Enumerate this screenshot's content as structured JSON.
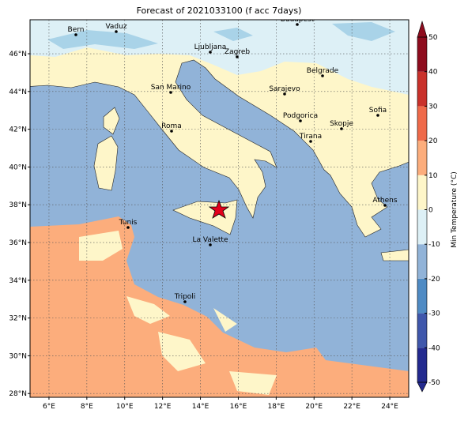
{
  "chart_data": {
    "type": "map",
    "title": "Forecast of 2021033100 (f acc 7days)",
    "xlim": [
      5,
      25
    ],
    "ylim": [
      27.8,
      47.8
    ],
    "xticks": [
      {
        "value": 6,
        "label": "6°E"
      },
      {
        "value": 8,
        "label": "8°E"
      },
      {
        "value": 10,
        "label": "10°E"
      },
      {
        "value": 12,
        "label": "12°E"
      },
      {
        "value": 14,
        "label": "14°E"
      },
      {
        "value": 16,
        "label": "16°E"
      },
      {
        "value": 18,
        "label": "18°E"
      },
      {
        "value": 20,
        "label": "20°E"
      },
      {
        "value": 22,
        "label": "22°E"
      },
      {
        "value": 24,
        "label": "24°E"
      }
    ],
    "yticks": [
      {
        "value": 28,
        "label": "28°N"
      },
      {
        "value": 30,
        "label": "30°N"
      },
      {
        "value": 32,
        "label": "32°N"
      },
      {
        "value": 34,
        "label": "34°N"
      },
      {
        "value": 36,
        "label": "36°N"
      },
      {
        "value": 38,
        "label": "38°N"
      },
      {
        "value": 40,
        "label": "40°N"
      },
      {
        "value": 42,
        "label": "42°N"
      },
      {
        "value": 44,
        "label": "44°N"
      },
      {
        "value": 46,
        "label": "46°N"
      }
    ],
    "grid": true,
    "cities": [
      "Bern",
      "Vaduz",
      "Budapest",
      "Ljubljana",
      "Zagreb",
      "Belgrade",
      "San Marino",
      "Sarajevo",
      "Sofia",
      "Roma",
      "Podgorica",
      "Skopje",
      "Tirana",
      "Athens",
      "Tunis",
      "La Valette",
      "Tripoli"
    ],
    "colorbar": {
      "label": "Min Temperature (°C)",
      "lim": [
        -50,
        50
      ],
      "ticks": [
        -50,
        -40,
        -30,
        -20,
        -10,
        0,
        10,
        20,
        30,
        40,
        50
      ],
      "colors": [
        "#232a8f",
        "#3f57ab",
        "#4f8bc4",
        "#91b3d8",
        "#ddf0f6",
        "#fef6c9",
        "#fcad7c",
        "#ef6a4a",
        "#c9312b",
        "#8e0c1e"
      ]
    }
  }
}
